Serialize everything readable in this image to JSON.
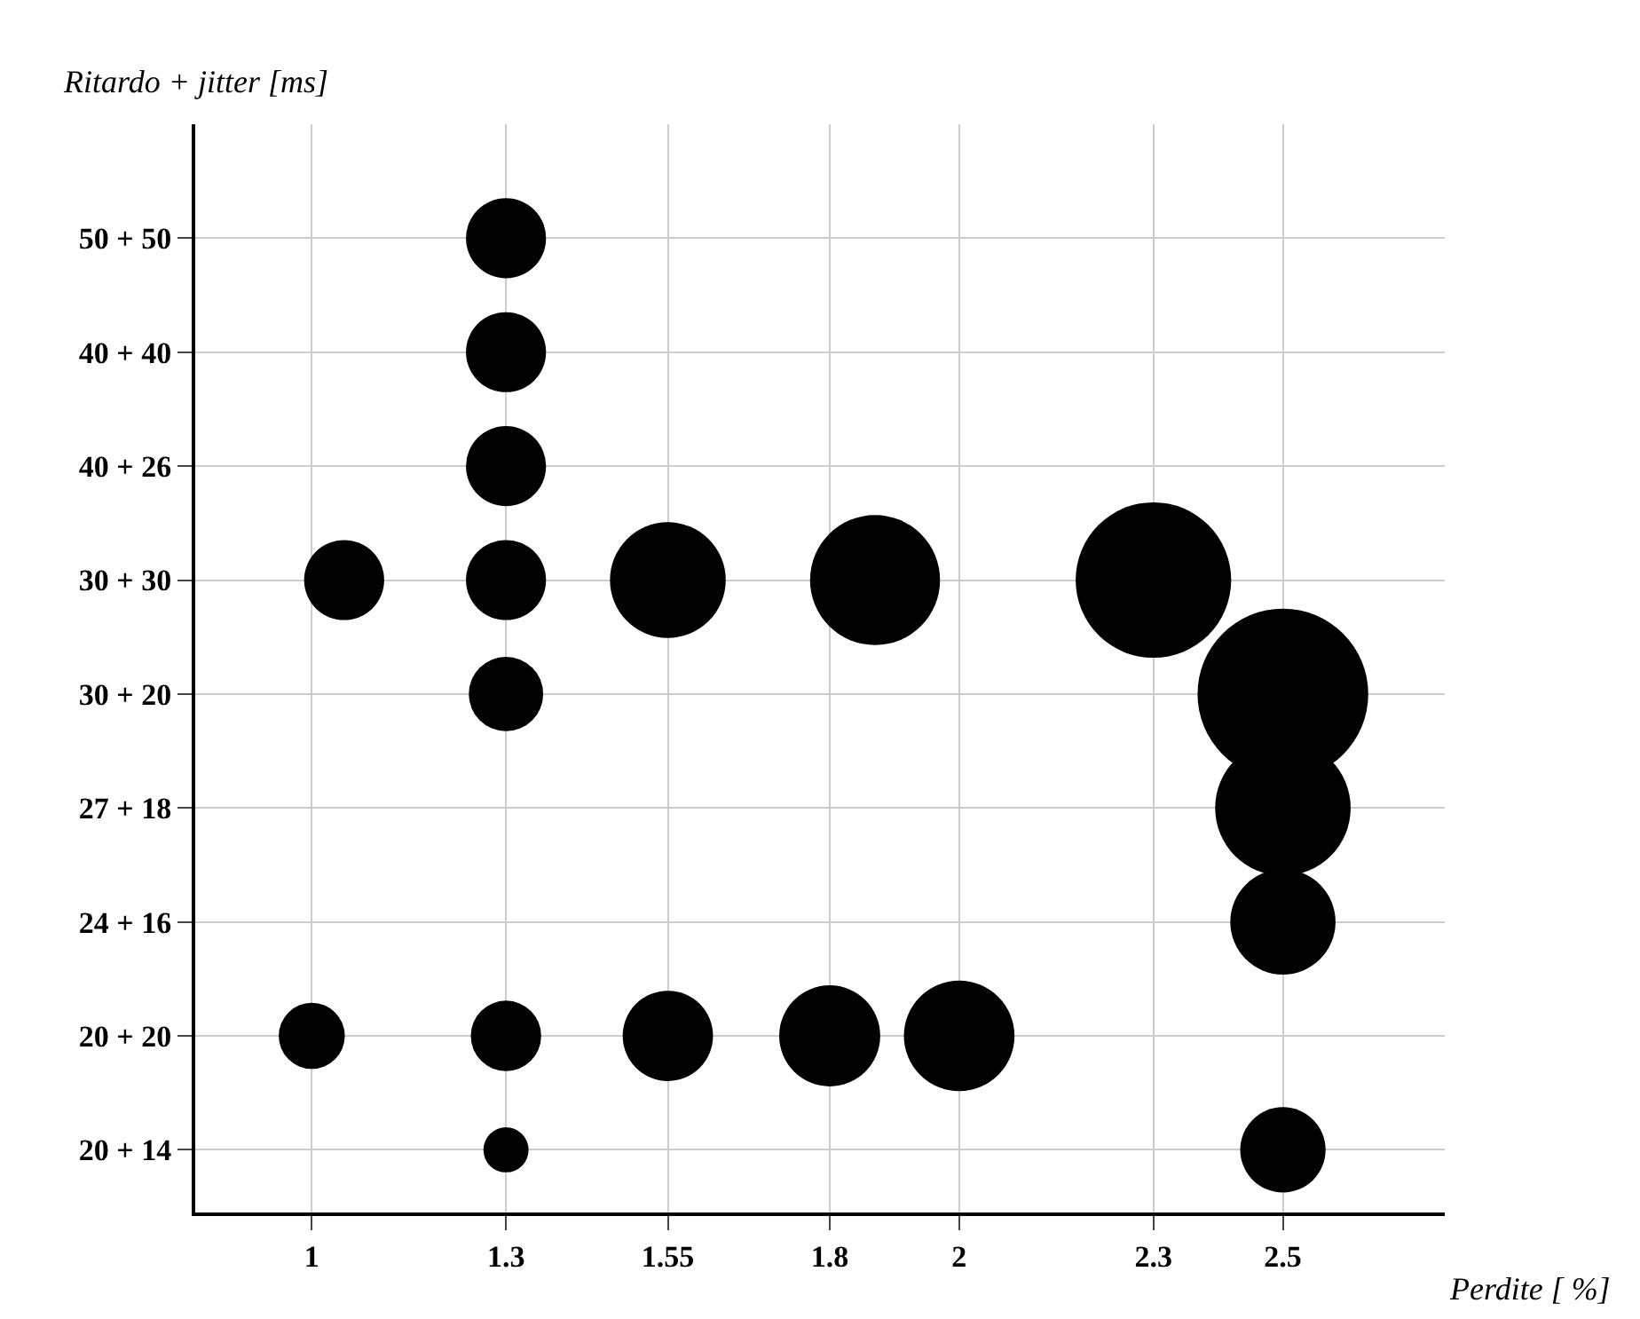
{
  "chart_data": {
    "type": "bubble",
    "orientation": "horizontal",
    "xlabel": "Perdite [ %]",
    "ylabel": "Ritardo + jitter [ms]",
    "xlim": [
      0.82,
      2.75
    ],
    "xticks": [
      1,
      1.3,
      1.55,
      1.8,
      2,
      2.3,
      2.5
    ],
    "categories": [
      "50 + 50",
      "40 + 40",
      "40 + 26",
      "30 + 30",
      "30 + 20",
      "27 + 18",
      "24 + 16",
      "20 + 20",
      "20 + 14"
    ],
    "grid": true,
    "marker": "circle",
    "series": [
      {
        "color": "#000000",
        "values": [
          1.3,
          1.3,
          1.3,
          1.3,
          1.3,
          null,
          null,
          1.3,
          1.3
        ],
        "sizes": [
          0.22,
          0.22,
          0.22,
          0.22,
          0.19,
          null,
          null,
          0.17,
          0.07
        ]
      },
      {
        "color": "#000000",
        "values": [
          null,
          null,
          null,
          2.3,
          2.5,
          2.5,
          2.5,
          2,
          2.5
        ],
        "sizes": [
          null,
          null,
          null,
          0.83,
          1,
          0.63,
          0.38,
          0.42,
          0.25
        ]
      },
      {
        "color": "#000000",
        "values": [
          null,
          null,
          null,
          1.05,
          null,
          null,
          null,
          1,
          null
        ],
        "sizes": [
          null,
          null,
          null,
          0.22,
          null,
          null,
          null,
          0.15,
          null
        ]
      },
      {
        "color": "#000000",
        "values": [
          null,
          null,
          null,
          1.55,
          null,
          null,
          null,
          1.55,
          null
        ],
        "sizes": [
          null,
          null,
          null,
          0.46,
          null,
          null,
          null,
          0.28,
          null
        ]
      },
      {
        "color": "#000000",
        "values": [
          null,
          null,
          null,
          1.87,
          null,
          null,
          null,
          1.8,
          null
        ],
        "sizes": [
          null,
          null,
          null,
          0.58,
          null,
          null,
          null,
          0.35,
          null
        ]
      }
    ]
  }
}
